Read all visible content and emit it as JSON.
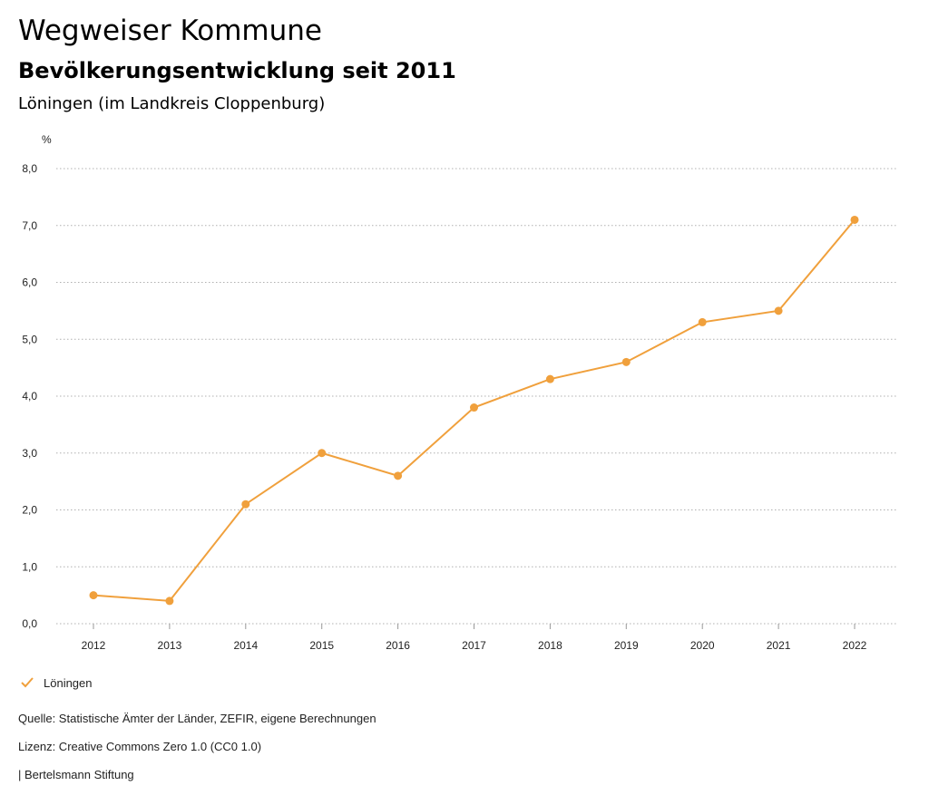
{
  "header": {
    "title": "Wegweiser Kommune",
    "subtitle": "Bevölkerungsentwicklung seit 2011",
    "region": "Löningen (im Landkreis Cloppenburg)"
  },
  "colors": {
    "series": "#f0a03c",
    "grid": "#b0b0b0"
  },
  "chart_data": {
    "type": "line",
    "title": "Bevölkerungsentwicklung seit 2011",
    "xlabel": "",
    "ylabel": "%",
    "ylim": [
      0,
      8
    ],
    "yticks": [
      "0,0",
      "1,0",
      "2,0",
      "3,0",
      "4,0",
      "5,0",
      "6,0",
      "7,0",
      "8,0"
    ],
    "categories": [
      "2012",
      "2013",
      "2014",
      "2015",
      "2016",
      "2017",
      "2018",
      "2019",
      "2020",
      "2021",
      "2022"
    ],
    "series": [
      {
        "name": "Löningen",
        "values": [
          0.5,
          0.4,
          2.1,
          3.0,
          2.6,
          3.8,
          4.3,
          4.6,
          5.3,
          5.5,
          7.1
        ]
      }
    ],
    "grid": true,
    "legend_position": "bottom-left"
  },
  "legend": {
    "label": "Löningen",
    "icon": "check-icon"
  },
  "footer": {
    "source": "Quelle: Statistische Ämter der Länder, ZEFIR, eigene Berechnungen",
    "license": "Lizenz: Creative Commons Zero 1.0 (CC0 1.0)",
    "brand": "| Bertelsmann Stiftung"
  }
}
